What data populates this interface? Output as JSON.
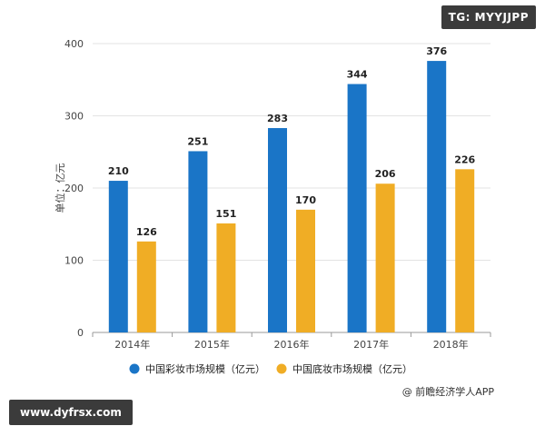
{
  "badges": {
    "corner": "TG: MYYJJPP",
    "site": "www.dyfrsx.com"
  },
  "source": "@ 前瞻经济学人APP",
  "colors": {
    "series_1": "#1a75c7",
    "series_2": "#f0ad25",
    "grid": "#e3e3e3",
    "axis": "#9a9a9a",
    "text": "#444444"
  },
  "chart_data": {
    "type": "bar",
    "title": "",
    "xlabel": "",
    "ylabel": "单位：亿元",
    "categories": [
      "2014年",
      "2015年",
      "2016年",
      "2017年",
      "2018年"
    ],
    "ylim": [
      0,
      400
    ],
    "yticks": [
      0,
      100,
      200,
      300,
      400
    ],
    "grid": true,
    "legend_position": "bottom",
    "series": [
      {
        "name": "中国彩妆市场规模（亿元）",
        "values": [
          210,
          251,
          283,
          344,
          376
        ]
      },
      {
        "name": "中国底妆市场规模（亿元）",
        "values": [
          126,
          151,
          170,
          206,
          226
        ]
      }
    ]
  }
}
